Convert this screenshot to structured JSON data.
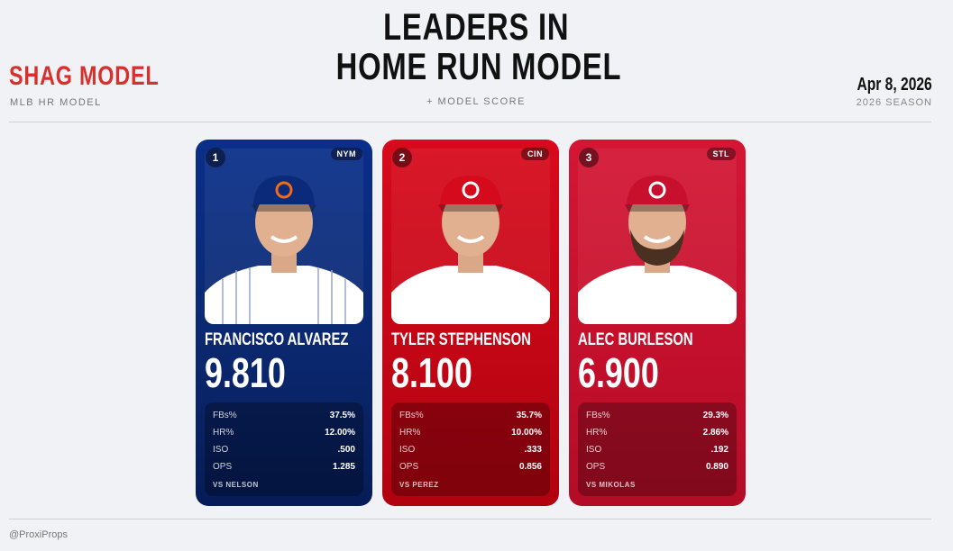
{
  "header": {
    "brand": "SHAG MODEL",
    "brand_sub": "MLB HR MODEL",
    "title_lines": [
      "LEADERS IN",
      "HOME RUN MODEL"
    ],
    "subtitle": "+ MODEL SCORE",
    "date": "Apr 8, 2026",
    "season": "2026 SEASON"
  },
  "cards": [
    {
      "rank": 1,
      "team": "NYM",
      "name": "FRANCISCO ALVAREZ",
      "score": "9.810",
      "stats": [
        {
          "label": "FBs%",
          "value": "37.5%"
        },
        {
          "label": "HR%",
          "value": "12.00%"
        },
        {
          "label": "ISO",
          "value": ".500"
        },
        {
          "label": "OPS",
          "value": "1.285"
        }
      ],
      "opponent": "VS NELSON"
    },
    {
      "rank": 2,
      "team": "CIN",
      "name": "TYLER STEPHENSON",
      "score": "8.100",
      "stats": [
        {
          "label": "FBs%",
          "value": "35.7%"
        },
        {
          "label": "HR%",
          "value": "10.00%"
        },
        {
          "label": "ISO",
          "value": ".333"
        },
        {
          "label": "OPS",
          "value": "0.856"
        }
      ],
      "opponent": "VS PEREZ"
    },
    {
      "rank": 3,
      "team": "STL",
      "name": "ALEC BURLESON",
      "score": "6.900",
      "stats": [
        {
          "label": "FBs%",
          "value": "29.3%"
        },
        {
          "label": "HR%",
          "value": "2.86%"
        },
        {
          "label": "ISO",
          "value": ".192"
        },
        {
          "label": "OPS",
          "value": "0.890"
        }
      ],
      "opponent": "VS MIKOLAS"
    }
  ],
  "footer": {
    "handle": "@ProxiProps"
  }
}
